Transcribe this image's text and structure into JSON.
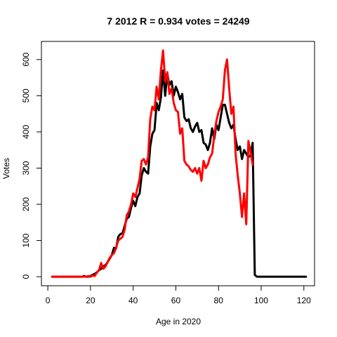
{
  "chart_data": {
    "type": "line",
    "title": "7 2012 R = 0.934 votes = 24249",
    "xlabel": "Age in 2020",
    "ylabel": "Votes",
    "xlim": [
      -3,
      125
    ],
    "ylim": [
      -25,
      650
    ],
    "x_ticks": [
      0,
      20,
      40,
      60,
      80,
      100,
      120
    ],
    "y_ticks": [
      0,
      100,
      200,
      300,
      400,
      500,
      600
    ],
    "grid": false,
    "legend": "none",
    "series": [
      {
        "color": "#000000",
        "points": [
          [
            2,
            0
          ],
          [
            4,
            0
          ],
          [
            6,
            0
          ],
          [
            8,
            0
          ],
          [
            10,
            0
          ],
          [
            12,
            0
          ],
          [
            14,
            0
          ],
          [
            16,
            0
          ],
          [
            17,
            2
          ],
          [
            18,
            0
          ],
          [
            19,
            0
          ],
          [
            20,
            2
          ],
          [
            21,
            5
          ],
          [
            22,
            8
          ],
          [
            23,
            12
          ],
          [
            24,
            18
          ],
          [
            25,
            22
          ],
          [
            26,
            28
          ],
          [
            27,
            32
          ],
          [
            28,
            40
          ],
          [
            29,
            50
          ],
          [
            30,
            60
          ],
          [
            31,
            80
          ],
          [
            32,
            78
          ],
          [
            33,
            110
          ],
          [
            34,
            118
          ],
          [
            35,
            120
          ],
          [
            36,
            140
          ],
          [
            37,
            160
          ],
          [
            38,
            165
          ],
          [
            39,
            190
          ],
          [
            40,
            210
          ],
          [
            41,
            195
          ],
          [
            42,
            220
          ],
          [
            43,
            230
          ],
          [
            44,
            280
          ],
          [
            45,
            300
          ],
          [
            46,
            290
          ],
          [
            47,
            285
          ],
          [
            48,
            360
          ],
          [
            49,
            395
          ],
          [
            50,
            405
          ],
          [
            51,
            480
          ],
          [
            52,
            460
          ],
          [
            53,
            495
          ],
          [
            54,
            570
          ],
          [
            55,
            500
          ],
          [
            56,
            560
          ],
          [
            57,
            530
          ],
          [
            58,
            540
          ],
          [
            59,
            500
          ],
          [
            60,
            525
          ],
          [
            61,
            510
          ],
          [
            62,
            490
          ],
          [
            63,
            505
          ],
          [
            64,
            440
          ],
          [
            65,
            430
          ],
          [
            66,
            435
          ],
          [
            67,
            410
          ],
          [
            68,
            400
          ],
          [
            69,
            415
          ],
          [
            70,
            425
          ],
          [
            71,
            400
          ],
          [
            72,
            405
          ],
          [
            73,
            370
          ],
          [
            74,
            365
          ],
          [
            75,
            350
          ],
          [
            76,
            370
          ],
          [
            77,
            410
          ],
          [
            78,
            380
          ],
          [
            79,
            420
          ],
          [
            80,
            405
          ],
          [
            81,
            440
          ],
          [
            82,
            475
          ],
          [
            83,
            475
          ],
          [
            84,
            450
          ],
          [
            85,
            425
          ],
          [
            86,
            410
          ],
          [
            87,
            420
          ],
          [
            88,
            380
          ],
          [
            89,
            350
          ],
          [
            90,
            360
          ],
          [
            91,
            325
          ],
          [
            92,
            350
          ],
          [
            93,
            340
          ],
          [
            94,
            330
          ],
          [
            95,
            335
          ],
          [
            96,
            370
          ],
          [
            97,
            5
          ],
          [
            98,
            0
          ],
          [
            100,
            0
          ],
          [
            105,
            0
          ],
          [
            110,
            0
          ],
          [
            115,
            0
          ],
          [
            121,
            0
          ]
        ]
      },
      {
        "color": "#ff0000",
        "points": [
          [
            2,
            0
          ],
          [
            4,
            0
          ],
          [
            6,
            0
          ],
          [
            8,
            0
          ],
          [
            10,
            0
          ],
          [
            12,
            0
          ],
          [
            14,
            0
          ],
          [
            16,
            0
          ],
          [
            18,
            0
          ],
          [
            19,
            2
          ],
          [
            20,
            0
          ],
          [
            21,
            3
          ],
          [
            22,
            2
          ],
          [
            23,
            12
          ],
          [
            24,
            18
          ],
          [
            25,
            38
          ],
          [
            26,
            22
          ],
          [
            27,
            28
          ],
          [
            28,
            40
          ],
          [
            29,
            52
          ],
          [
            30,
            60
          ],
          [
            31,
            65
          ],
          [
            32,
            80
          ],
          [
            33,
            100
          ],
          [
            34,
            105
          ],
          [
            35,
            110
          ],
          [
            36,
            130
          ],
          [
            37,
            170
          ],
          [
            38,
            180
          ],
          [
            39,
            200
          ],
          [
            40,
            230
          ],
          [
            41,
            220
          ],
          [
            42,
            245
          ],
          [
            43,
            270
          ],
          [
            44,
            320
          ],
          [
            45,
            325
          ],
          [
            46,
            310
          ],
          [
            47,
            330
          ],
          [
            48,
            435
          ],
          [
            49,
            470
          ],
          [
            50,
            460
          ],
          [
            51,
            525
          ],
          [
            52,
            490
          ],
          [
            53,
            570
          ],
          [
            54,
            625
          ],
          [
            55,
            540
          ],
          [
            56,
            565
          ],
          [
            57,
            505
          ],
          [
            58,
            520
          ],
          [
            59,
            480
          ],
          [
            60,
            460
          ],
          [
            61,
            455
          ],
          [
            62,
            395
          ],
          [
            63,
            410
          ],
          [
            64,
            320
          ],
          [
            65,
            310
          ],
          [
            66,
            305
          ],
          [
            67,
            295
          ],
          [
            68,
            290
          ],
          [
            69,
            300
          ],
          [
            70,
            285
          ],
          [
            71,
            300
          ],
          [
            72,
            265
          ],
          [
            73,
            320
          ],
          [
            74,
            300
          ],
          [
            75,
            310
          ],
          [
            76,
            330
          ],
          [
            77,
            340
          ],
          [
            78,
            390
          ],
          [
            79,
            430
          ],
          [
            80,
            455
          ],
          [
            81,
            470
          ],
          [
            82,
            490
          ],
          [
            83,
            570
          ],
          [
            84,
            600
          ],
          [
            85,
            520
          ],
          [
            86,
            450
          ],
          [
            87,
            470
          ],
          [
            88,
            340
          ],
          [
            89,
            280
          ],
          [
            90,
            230
          ],
          [
            91,
            165
          ],
          [
            92,
            230
          ],
          [
            93,
            145
          ],
          [
            94,
            375
          ],
          [
            95,
            345
          ],
          [
            96,
            310
          ]
        ]
      }
    ]
  }
}
